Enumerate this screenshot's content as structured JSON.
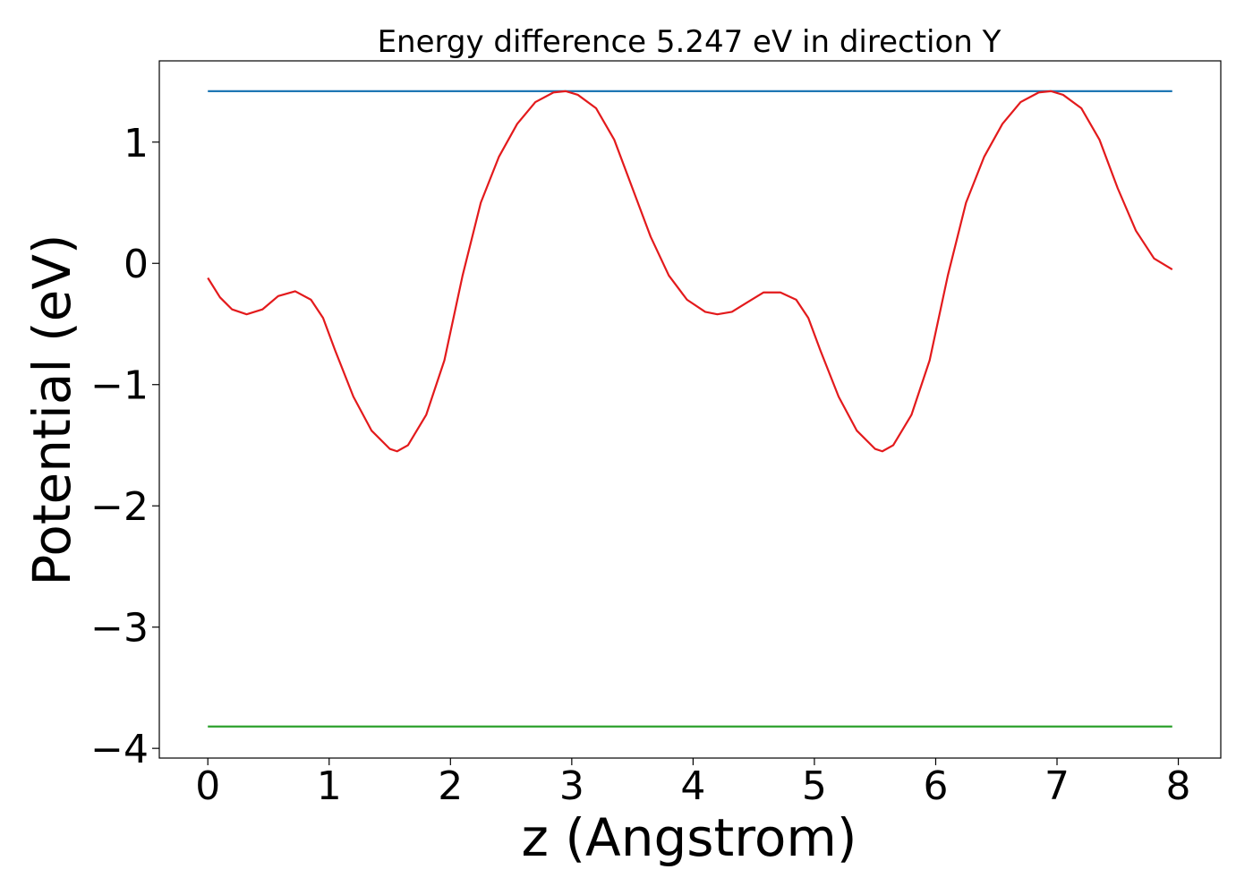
{
  "chart_data": {
    "type": "line",
    "title": "Energy difference 5.247 eV in direction Y",
    "xlabel": "z (Angstrom)",
    "ylabel": "Potential (eV)",
    "xlim": [
      -0.4,
      8.35
    ],
    "ylim": [
      -4.08,
      1.67
    ],
    "xticks": [
      {
        "value": 0,
        "label": "0"
      },
      {
        "value": 1,
        "label": "1"
      },
      {
        "value": 2,
        "label": "2"
      },
      {
        "value": 3,
        "label": "3"
      },
      {
        "value": 4,
        "label": "4"
      },
      {
        "value": 5,
        "label": "5"
      },
      {
        "value": 6,
        "label": "6"
      },
      {
        "value": 7,
        "label": "7"
      },
      {
        "value": 8,
        "label": "8"
      }
    ],
    "yticks": [
      {
        "value": 1,
        "label": "1"
      },
      {
        "value": 0,
        "label": "0"
      },
      {
        "value": -1,
        "label": "−1"
      },
      {
        "value": -2,
        "label": "−2"
      },
      {
        "value": -3,
        "label": "−3"
      },
      {
        "value": -4,
        "label": "−4"
      }
    ],
    "grid": false,
    "series": [
      {
        "color": "#1f77b4",
        "x": [
          0,
          7.95
        ],
        "y": [
          1.42,
          1.42
        ]
      },
      {
        "color": "#2ca02c",
        "x": [
          0,
          7.95
        ],
        "y": [
          -3.82,
          -3.82
        ]
      },
      {
        "color": "#e31a1c",
        "x": [
          0.0,
          0.1,
          0.2,
          0.32,
          0.45,
          0.58,
          0.72,
          0.85,
          0.95,
          1.05,
          1.2,
          1.35,
          1.5,
          1.56,
          1.65,
          1.8,
          1.95,
          2.1,
          2.25,
          2.4,
          2.55,
          2.7,
          2.85,
          2.95,
          3.05,
          3.2,
          3.35,
          3.5,
          3.65,
          3.8,
          3.95,
          4.1,
          4.2,
          4.32,
          4.45,
          4.58,
          4.72,
          4.85,
          4.95,
          5.05,
          5.2,
          5.35,
          5.5,
          5.56,
          5.65,
          5.8,
          5.95,
          6.1,
          6.25,
          6.4,
          6.55,
          6.7,
          6.85,
          6.95,
          7.05,
          7.2,
          7.35,
          7.5,
          7.65,
          7.8,
          7.95
        ],
        "y": [
          -0.12,
          -0.28,
          -0.38,
          -0.42,
          -0.38,
          -0.27,
          -0.23,
          -0.3,
          -0.45,
          -0.72,
          -1.1,
          -1.38,
          -1.53,
          -1.55,
          -1.5,
          -1.25,
          -0.8,
          -0.1,
          0.5,
          0.88,
          1.15,
          1.33,
          1.41,
          1.42,
          1.39,
          1.28,
          1.02,
          0.62,
          0.22,
          -0.1,
          -0.3,
          -0.4,
          -0.42,
          -0.4,
          -0.32,
          -0.24,
          -0.24,
          -0.3,
          -0.45,
          -0.72,
          -1.1,
          -1.38,
          -1.53,
          -1.55,
          -1.5,
          -1.25,
          -0.8,
          -0.1,
          0.5,
          0.88,
          1.15,
          1.33,
          1.41,
          1.42,
          1.39,
          1.28,
          1.02,
          0.62,
          0.27,
          0.04,
          -0.05
        ]
      }
    ]
  }
}
